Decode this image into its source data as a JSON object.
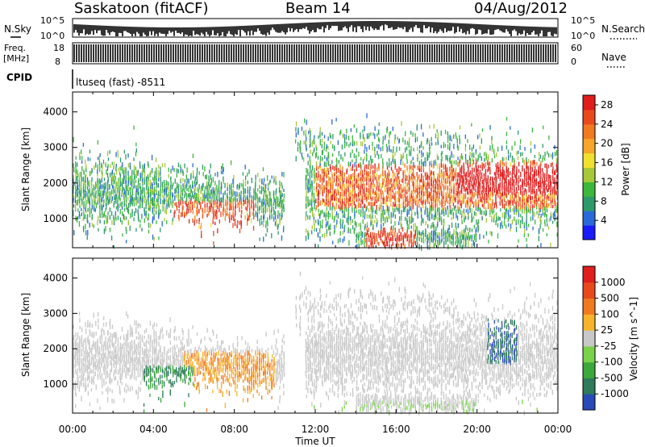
{
  "header": {
    "station": "Saskatoon (fitACF)",
    "beam": "Beam 14",
    "date": "04/Aug/2012"
  },
  "strip_panels": {
    "noise": {
      "left_label": "N.Sky",
      "right_label": "N.Search",
      "left_ticks": [
        "10^5",
        "10^0"
      ],
      "right_ticks": [
        "10^5",
        "10^0"
      ]
    },
    "freq": {
      "left_label_1": "Freq.",
      "left_label_2": "[MHz]",
      "right_label": "Nave",
      "left_ticks": [
        "18",
        "8"
      ],
      "right_ticks": [
        "60",
        "0"
      ]
    },
    "cpid": {
      "label": "CPID",
      "value": "ltuseq (fast) -8511"
    }
  },
  "chart_data": [
    {
      "type": "heatmap",
      "name": "power",
      "ylabel": "Slant Range [km]",
      "ylim": [
        180,
        4560
      ],
      "yticks": [
        "1000",
        "2000",
        "3000",
        "4000"
      ],
      "xlabel": "Time UT",
      "xticks": [
        "00:00",
        "04:00",
        "08:00",
        "12:00",
        "16:00",
        "20:00",
        "00:00"
      ],
      "colorbar": {
        "label": "Power [dB]",
        "range": [
          0,
          30
        ],
        "ticks": [
          "4",
          "8",
          "12",
          "16",
          "20",
          "24",
          "28"
        ],
        "colors": [
          "#1a1aff",
          "#2a6ad8",
          "#2e9a6a",
          "#3db83d",
          "#a8c83a",
          "#f0e030",
          "#f6a62a",
          "#f07a22",
          "#e84a1e",
          "#e01e1e"
        ]
      }
    },
    {
      "type": "heatmap",
      "name": "velocity",
      "ylabel": "Slant Range [km]",
      "ylim": [
        180,
        4560
      ],
      "yticks": [
        "1000",
        "2000",
        "3000",
        "4000"
      ],
      "xlabel": "Time UT",
      "xticks": [
        "00:00",
        "04:00",
        "08:00",
        "12:00",
        "16:00",
        "20:00",
        "00:00"
      ],
      "colorbar": {
        "label": "Velocity [m s^-1]",
        "ticks": [
          "1000",
          "500",
          "100",
          "25",
          "-25",
          "-100",
          "-500",
          "-1000"
        ],
        "colors": [
          "#2a4ab8",
          "#2e7a5a",
          "#3aa83a",
          "#7ad24a",
          "#c8c8c8",
          "#f6b42a",
          "#f07a22",
          "#e84a1e",
          "#e01e1e"
        ]
      }
    }
  ]
}
